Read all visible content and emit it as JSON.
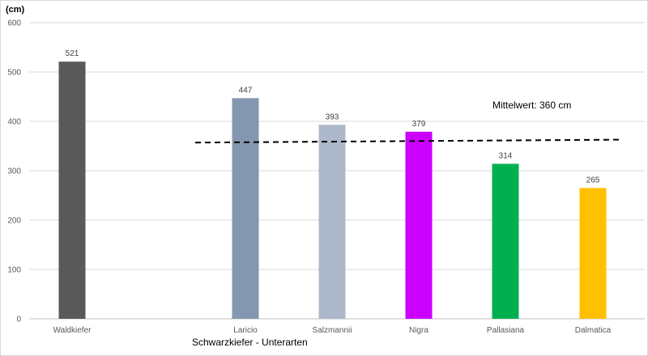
{
  "chart_data": {
    "type": "bar",
    "ylabel": "(cm)",
    "ylim": [
      0,
      600
    ],
    "yticks": [
      0,
      100,
      200,
      300,
      400,
      500,
      600
    ],
    "categories": [
      "Waldkiefer",
      "Laricio",
      "Salzmannii",
      "Nigra",
      "Pallasiana",
      "Dalmatica"
    ],
    "values": [
      521,
      447,
      393,
      379,
      314,
      265
    ],
    "colors": [
      "#595959",
      "#8497b0",
      "#adb9ca",
      "#cc00ff",
      "#00b050",
      "#ffc000"
    ],
    "data_labels": [
      "521",
      "447",
      "393",
      "379",
      "314",
      "265"
    ],
    "mean_line": {
      "value": 360,
      "label": "Mittelwert: 360 cm",
      "style": "dashed"
    },
    "group_label": "Schwarzkiefer - Unterarten",
    "grid": true
  }
}
